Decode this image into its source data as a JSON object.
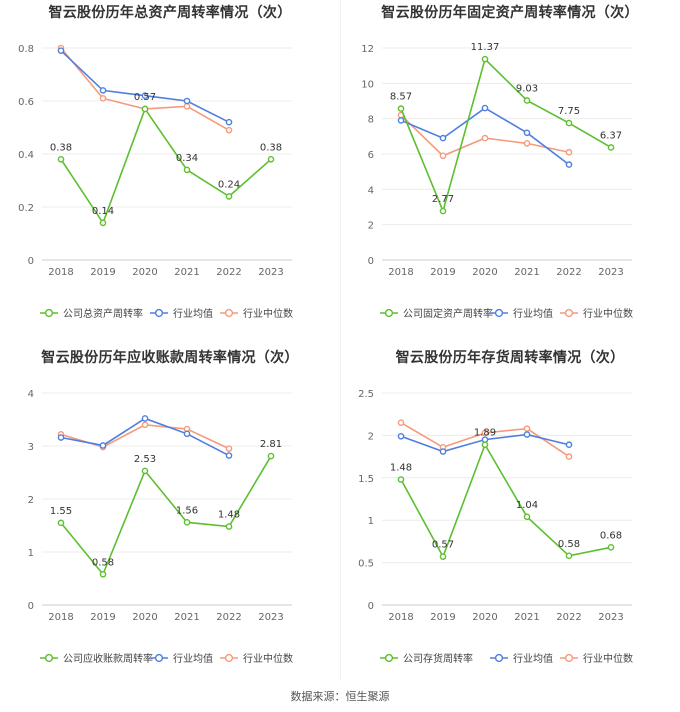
{
  "source_label": "数据来源：恒生聚源",
  "colors": {
    "company": "#5cbf2d",
    "avg": "#4e7fe0",
    "median": "#f59a7b"
  },
  "chart_data": [
    {
      "type": "line",
      "title": "智云股份历年总资产周转率情况（次）",
      "categories": [
        "2018",
        "2019",
        "2020",
        "2021",
        "2022",
        "2023"
      ],
      "ylim": [
        0,
        0.8
      ],
      "yticks": [
        "0",
        "0.2",
        "0.4",
        "0.6",
        "0.8"
      ],
      "ytick_values": [
        0,
        0.2,
        0.4,
        0.6,
        0.8
      ],
      "legend": [
        "公司总资产周转率",
        "行业均值",
        "行业中位数"
      ],
      "series": [
        {
          "name": "公司总资产周转率",
          "values": [
            0.38,
            0.14,
            0.57,
            0.34,
            0.24,
            0.38
          ],
          "labels": [
            "0.38",
            "0.14",
            "0.57",
            "0.34",
            "0.24",
            "0.38"
          ]
        },
        {
          "name": "行业均值",
          "values": [
            0.79,
            0.64,
            0.62,
            0.6,
            0.52,
            null
          ]
        },
        {
          "name": "行业中位数",
          "values": [
            0.8,
            0.61,
            0.57,
            0.58,
            0.49,
            null
          ]
        }
      ]
    },
    {
      "type": "line",
      "title": "智云股份历年固定资产周转率情况（次）",
      "categories": [
        "2018",
        "2019",
        "2020",
        "2021",
        "2022",
        "2023"
      ],
      "ylim": [
        0,
        12
      ],
      "yticks": [
        "0",
        "2",
        "4",
        "6",
        "8",
        "10",
        "12"
      ],
      "ytick_values": [
        0,
        2,
        4,
        6,
        8,
        10,
        12
      ],
      "legend": [
        "公司固定资产周转率",
        "行业均值",
        "行业中位数"
      ],
      "series": [
        {
          "name": "公司固定资产周转率",
          "values": [
            8.57,
            2.77,
            11.37,
            9.03,
            7.75,
            6.37
          ],
          "labels": [
            "8.57",
            "2.77",
            "11.37",
            "9.03",
            "7.75",
            "6.37"
          ]
        },
        {
          "name": "行业均值",
          "values": [
            7.9,
            6.9,
            8.6,
            7.2,
            5.4,
            null
          ]
        },
        {
          "name": "行业中位数",
          "values": [
            8.2,
            5.9,
            6.9,
            6.6,
            6.1,
            null
          ]
        }
      ]
    },
    {
      "type": "line",
      "title": "智云股份历年应收账款周转率情况（次）",
      "categories": [
        "2018",
        "2019",
        "2020",
        "2021",
        "2022",
        "2023"
      ],
      "ylim": [
        0,
        4
      ],
      "yticks": [
        "0",
        "1",
        "2",
        "3",
        "4"
      ],
      "ytick_values": [
        0,
        1,
        2,
        3,
        4
      ],
      "legend": [
        "公司应收账款周转率",
        "行业均值",
        "行业中位数"
      ],
      "series": [
        {
          "name": "公司应收账款周转率",
          "values": [
            1.55,
            0.58,
            2.53,
            1.56,
            1.48,
            2.81
          ],
          "labels": [
            "1.55",
            "0.58",
            "2.53",
            "1.56",
            "1.48",
            "2.81"
          ]
        },
        {
          "name": "行业均值",
          "values": [
            3.16,
            3.01,
            3.52,
            3.23,
            2.82,
            null
          ]
        },
        {
          "name": "行业中位数",
          "values": [
            3.22,
            2.98,
            3.4,
            3.32,
            2.95,
            null
          ]
        }
      ]
    },
    {
      "type": "line",
      "title": "智云股份历年存货周转率情况（次）",
      "categories": [
        "2018",
        "2019",
        "2020",
        "2021",
        "2022",
        "2023"
      ],
      "ylim": [
        0,
        2.5
      ],
      "yticks": [
        "0",
        "0.5",
        "1",
        "1.5",
        "2",
        "2.5"
      ],
      "ytick_values": [
        0,
        0.5,
        1,
        1.5,
        2,
        2.5
      ],
      "legend": [
        "公司存货周转率",
        "行业均值",
        "行业中位数"
      ],
      "series": [
        {
          "name": "公司存货周转率",
          "values": [
            1.48,
            0.57,
            1.89,
            1.04,
            0.58,
            0.68
          ],
          "labels": [
            "1.48",
            "0.57",
            "1.89",
            "1.04",
            "0.58",
            "0.68"
          ]
        },
        {
          "name": "行业均值",
          "values": [
            1.99,
            1.81,
            1.95,
            2.01,
            1.89,
            null
          ]
        },
        {
          "name": "行业中位数",
          "values": [
            2.15,
            1.86,
            2.03,
            2.08,
            1.75,
            null
          ]
        }
      ]
    }
  ]
}
